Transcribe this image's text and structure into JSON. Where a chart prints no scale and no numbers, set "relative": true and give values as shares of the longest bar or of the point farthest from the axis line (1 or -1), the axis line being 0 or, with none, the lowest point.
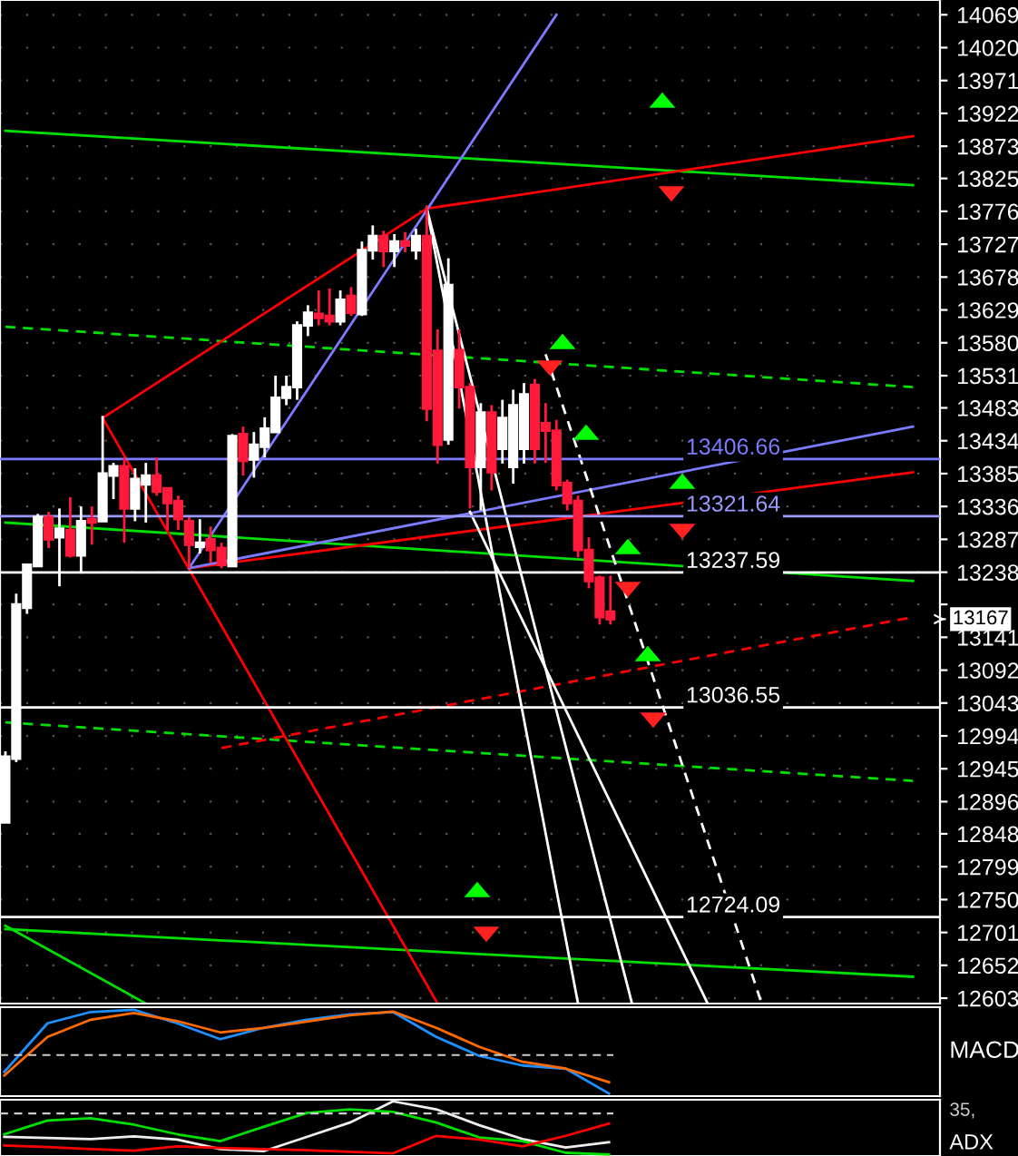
{
  "chart_data": [
    {
      "type": "candlestick",
      "categories": [
        null,
        null,
        null,
        null,
        null,
        null,
        null,
        null,
        null,
        null,
        null,
        null,
        null,
        null,
        null,
        null,
        null,
        null,
        null,
        null,
        null,
        null,
        null,
        null,
        null,
        null,
        null,
        null,
        null,
        null,
        null,
        null,
        null,
        null,
        null,
        null,
        null,
        null,
        null,
        null,
        null,
        null,
        null,
        null,
        null,
        null,
        null,
        null,
        null,
        null,
        null,
        null,
        null,
        null,
        null,
        null,
        null,
        null,
        null,
        null,
        null,
        null,
        null,
        null,
        null,
        null,
        null,
        null,
        null,
        null,
        null,
        null,
        null,
        null,
        null,
        null,
        null,
        null,
        null,
        null,
        null,
        null,
        null,
        null,
        null,
        null,
        null
      ],
      "ohlc": [
        [
          12865,
          12971,
          12865,
          12963
        ],
        [
          12960,
          13206,
          12955,
          13190
        ],
        [
          13185,
          13249,
          13176,
          13249
        ],
        [
          13247,
          13325,
          13247,
          13320
        ],
        [
          13320,
          13328,
          13274,
          13287
        ],
        [
          13290,
          13333,
          13217,
          13303
        ],
        [
          13301,
          13350,
          13260,
          13263
        ],
        [
          13263,
          13336,
          13236,
          13314
        ],
        [
          13317,
          13336,
          13279,
          13312
        ],
        [
          13314,
          13471,
          13314,
          13385
        ],
        [
          13382,
          13401,
          13347,
          13396
        ],
        [
          13396,
          13409,
          13282,
          13333
        ],
        [
          13333,
          13393,
          13314,
          13377
        ],
        [
          13369,
          13401,
          13312,
          13382
        ],
        [
          13382,
          13409,
          13352,
          13358
        ],
        [
          13363,
          13363,
          13301,
          13341
        ],
        [
          13344,
          13352,
          13301,
          13317
        ],
        [
          13314,
          13320,
          13244,
          13279
        ],
        [
          13276,
          13317,
          13266,
          13282
        ],
        [
          13287,
          13306,
          13252,
          13271
        ],
        [
          13274,
          13282,
          13244,
          13249
        ],
        [
          13247,
          13444,
          13247,
          13441
        ],
        [
          13444,
          13455,
          13382,
          13404
        ],
        [
          13406,
          13447,
          13379,
          13428
        ],
        [
          13425,
          13469,
          13409,
          13452
        ],
        [
          13447,
          13531,
          13447,
          13498
        ],
        [
          13498,
          13531,
          13487,
          13514
        ],
        [
          13514,
          13612,
          13495,
          13606
        ],
        [
          13606,
          13636,
          13590,
          13625
        ],
        [
          13623,
          13658,
          13606,
          13617
        ],
        [
          13620,
          13661,
          13606,
          13612
        ],
        [
          13612,
          13658,
          13606,
          13644
        ],
        [
          13650,
          13663,
          13620,
          13625
        ],
        [
          13623,
          13731,
          13620,
          13718
        ],
        [
          13718,
          13755,
          13704,
          13739
        ],
        [
          13739,
          13747,
          13693,
          13717
        ],
        [
          13717,
          13742,
          13693,
          13731
        ],
        [
          13731,
          13745,
          13715,
          13725
        ],
        [
          13718,
          13750,
          13704,
          13739
        ],
        [
          13739,
          13785,
          13463,
          13482
        ],
        [
          13568,
          13600,
          13400,
          13428
        ],
        [
          13436,
          13706,
          13428,
          13666
        ],
        [
          13569,
          13600,
          13482,
          13514
        ],
        [
          13514,
          13520,
          13333,
          13395
        ],
        [
          13395,
          13490,
          13330,
          13476
        ],
        [
          13476,
          13487,
          13360,
          13387
        ],
        [
          13422,
          13495,
          13400,
          13468
        ],
        [
          13395,
          13510,
          13370,
          13487
        ],
        [
          13422,
          13520,
          13400,
          13503
        ],
        [
          13517,
          13526,
          13400,
          13422
        ],
        [
          13460,
          13490,
          13401,
          13449
        ],
        [
          13449,
          13465,
          13360,
          13368
        ],
        [
          13371,
          13376,
          13330,
          13341
        ],
        [
          13344,
          13352,
          13260,
          13271
        ],
        [
          13271,
          13290,
          13214,
          13225
        ],
        [
          13230,
          13233,
          13160,
          13171
        ],
        [
          13179,
          13233,
          13160,
          13168
        ],
        null,
        null,
        null,
        null,
        null,
        null,
        null,
        null,
        null,
        null,
        null,
        null,
        null,
        null,
        null,
        null,
        null,
        null,
        null,
        null,
        null,
        null,
        null,
        null,
        null,
        null,
        null,
        null,
        null,
        null
      ],
      "series": [
        {
          "type": "line",
          "color": "#00e000",
          "line_style": "solid",
          "values": [
            13896,
            null,
            null,
            null,
            null,
            null,
            null,
            null,
            null,
            null,
            null,
            null,
            null,
            null,
            null,
            null,
            null,
            null,
            null,
            null,
            null,
            null,
            null,
            null,
            null,
            null,
            null,
            null,
            null,
            null,
            null,
            null,
            null,
            null,
            null,
            null,
            null,
            null,
            null,
            null,
            null,
            null,
            null,
            null,
            null,
            null,
            null,
            null,
            null,
            null,
            null,
            null,
            null,
            null,
            null,
            null,
            null,
            null,
            null,
            null,
            null,
            null,
            null,
            null,
            null,
            null,
            null,
            null,
            null,
            null,
            null,
            null,
            null,
            null,
            null,
            null,
            null,
            null,
            null,
            null,
            null,
            null,
            null,
            null,
            13815,
            null,
            null
          ]
        },
        {
          "type": "line",
          "color": "#00e000",
          "line_style": "solid",
          "values": [
            13312,
            null,
            null,
            null,
            null,
            null,
            null,
            null,
            null,
            null,
            null,
            null,
            null,
            null,
            null,
            null,
            null,
            null,
            null,
            null,
            null,
            null,
            null,
            null,
            null,
            null,
            null,
            null,
            null,
            null,
            null,
            null,
            null,
            null,
            null,
            null,
            null,
            null,
            null,
            null,
            null,
            null,
            null,
            null,
            null,
            null,
            null,
            null,
            null,
            null,
            null,
            null,
            null,
            null,
            null,
            null,
            null,
            null,
            null,
            null,
            null,
            null,
            null,
            null,
            null,
            null,
            null,
            null,
            null,
            null,
            null,
            null,
            null,
            null,
            null,
            null,
            null,
            null,
            null,
            null,
            null,
            null,
            null,
            null,
            13225,
            null,
            null
          ]
        },
        {
          "type": "line",
          "color": "#00e000",
          "line_style": "solid",
          "values": [
            12706,
            null,
            null,
            null,
            null,
            null,
            null,
            null,
            null,
            null,
            null,
            null,
            null,
            null,
            null,
            null,
            null,
            null,
            null,
            null,
            null,
            null,
            null,
            null,
            null,
            null,
            null,
            null,
            null,
            null,
            null,
            null,
            null,
            null,
            null,
            null,
            null,
            null,
            null,
            null,
            null,
            null,
            null,
            null,
            null,
            null,
            null,
            null,
            null,
            null,
            null,
            null,
            null,
            null,
            null,
            null,
            null,
            null,
            null,
            null,
            null,
            null,
            null,
            null,
            null,
            null,
            null,
            null,
            null,
            null,
            null,
            null,
            null,
            null,
            null,
            null,
            null,
            null,
            null,
            null,
            null,
            null,
            null,
            null,
            12635,
            null,
            null
          ]
        },
        {
          "type": "line",
          "color": "#00e000",
          "line_style": "solid",
          "values": [
            12711,
            null,
            null,
            null,
            null,
            null,
            null,
            null,
            null,
            null,
            null,
            null,
            null,
            12595,
            null,
            null,
            null,
            null,
            null,
            null,
            null,
            null,
            null,
            null,
            null,
            null,
            null,
            null,
            null,
            null,
            null,
            null,
            null,
            null,
            null,
            null,
            null,
            null,
            null,
            null,
            null,
            null,
            null,
            null,
            null,
            null,
            null,
            null,
            null,
            null,
            null,
            null,
            null,
            null,
            null,
            null,
            null,
            null,
            null,
            null,
            null,
            null,
            null,
            null,
            null,
            null,
            null,
            null,
            null,
            null,
            null,
            null,
            null,
            null,
            null,
            null,
            null,
            null,
            null,
            null,
            null,
            null,
            null,
            null,
            null,
            null,
            null
          ]
        },
        {
          "type": "line",
          "color": "#00e000",
          "line_style": "dashed",
          "values": [
            13604,
            null,
            null,
            null,
            null,
            null,
            null,
            null,
            null,
            null,
            null,
            null,
            null,
            null,
            null,
            null,
            null,
            null,
            null,
            null,
            null,
            null,
            null,
            null,
            null,
            null,
            null,
            null,
            null,
            null,
            null,
            null,
            null,
            null,
            null,
            null,
            null,
            null,
            null,
            null,
            null,
            null,
            null,
            null,
            null,
            null,
            null,
            null,
            null,
            null,
            null,
            null,
            null,
            null,
            null,
            null,
            null,
            null,
            null,
            null,
            null,
            null,
            null,
            null,
            null,
            null,
            null,
            null,
            null,
            null,
            null,
            null,
            null,
            null,
            null,
            null,
            null,
            null,
            null,
            null,
            null,
            null,
            null,
            null,
            13514,
            null,
            null
          ]
        },
        {
          "type": "line",
          "color": "#00e000",
          "line_style": "dashed",
          "values": [
            13014,
            null,
            null,
            null,
            null,
            null,
            null,
            null,
            null,
            null,
            null,
            null,
            null,
            null,
            null,
            null,
            null,
            null,
            null,
            null,
            null,
            null,
            null,
            null,
            null,
            null,
            null,
            null,
            null,
            null,
            null,
            null,
            null,
            null,
            null,
            null,
            null,
            null,
            null,
            null,
            null,
            null,
            null,
            null,
            null,
            null,
            null,
            null,
            null,
            null,
            null,
            null,
            null,
            null,
            null,
            null,
            null,
            null,
            null,
            null,
            null,
            null,
            null,
            null,
            null,
            null,
            null,
            null,
            null,
            null,
            null,
            null,
            null,
            null,
            null,
            null,
            null,
            null,
            null,
            null,
            null,
            null,
            null,
            null,
            12927,
            null,
            null
          ]
        },
        {
          "type": "line",
          "color": "#ff0000",
          "line_style": "solid",
          "values": [
            null,
            null,
            null,
            null,
            null,
            null,
            null,
            null,
            null,
            13468,
            null,
            null,
            null,
            null,
            null,
            null,
            null,
            null,
            null,
            null,
            null,
            null,
            null,
            null,
            null,
            null,
            null,
            null,
            null,
            null,
            null,
            null,
            null,
            null,
            null,
            null,
            null,
            null,
            null,
            13780,
            null,
            null,
            null,
            null,
            null,
            null,
            null,
            null,
            null,
            null,
            null,
            null,
            null,
            null,
            null,
            null,
            null,
            null,
            null,
            null,
            null,
            null,
            null,
            null,
            null,
            null,
            null,
            null,
            null,
            null,
            null,
            null,
            null,
            null,
            null,
            null,
            null,
            null,
            null,
            null,
            null,
            null,
            null,
            null,
            13888,
            null,
            null
          ]
        },
        {
          "type": "line",
          "color": "#ff0000",
          "line_style": "solid",
          "values": [
            null,
            null,
            null,
            null,
            null,
            null,
            null,
            null,
            null,
            13468,
            null,
            null,
            null,
            null,
            null,
            null,
            null,
            null,
            null,
            null,
            null,
            null,
            null,
            null,
            null,
            null,
            null,
            null,
            null,
            null,
            null,
            null,
            null,
            null,
            null,
            null,
            null,
            null,
            null,
            null,
            12595,
            null,
            null,
            null,
            null,
            null,
            null,
            null,
            null,
            null,
            null,
            null,
            null,
            null,
            null,
            null,
            null,
            null,
            null,
            null,
            null,
            null,
            null,
            null,
            null,
            null,
            null,
            null,
            null,
            null,
            null,
            null,
            null,
            null,
            null,
            null,
            null,
            null,
            null,
            null,
            null,
            null,
            null,
            null,
            null,
            null,
            null
          ]
        },
        {
          "type": "line",
          "color": "#ff0000",
          "line_style": "solid",
          "values": [
            null,
            null,
            null,
            null,
            null,
            null,
            null,
            null,
            null,
            null,
            null,
            null,
            null,
            null,
            null,
            null,
            null,
            13244,
            null,
            null,
            null,
            null,
            null,
            null,
            null,
            null,
            null,
            null,
            null,
            null,
            null,
            null,
            null,
            null,
            null,
            null,
            null,
            null,
            null,
            null,
            null,
            null,
            null,
            null,
            null,
            null,
            null,
            null,
            null,
            null,
            null,
            null,
            null,
            null,
            null,
            null,
            null,
            null,
            null,
            null,
            null,
            null,
            null,
            null,
            null,
            null,
            null,
            null,
            null,
            null,
            null,
            null,
            null,
            null,
            null,
            null,
            null,
            null,
            null,
            null,
            null,
            null,
            null,
            null,
            13387,
            null,
            null
          ]
        },
        {
          "type": "line",
          "color": "#ff0000",
          "line_style": "dashed",
          "values": [
            null,
            null,
            null,
            null,
            null,
            null,
            null,
            null,
            null,
            null,
            null,
            null,
            null,
            null,
            null,
            null,
            null,
            null,
            null,
            null,
            12976,
            null,
            null,
            null,
            null,
            null,
            null,
            null,
            null,
            null,
            null,
            null,
            null,
            null,
            null,
            null,
            null,
            null,
            null,
            null,
            null,
            null,
            null,
            null,
            null,
            null,
            null,
            null,
            null,
            null,
            null,
            null,
            null,
            null,
            null,
            null,
            null,
            null,
            null,
            null,
            null,
            null,
            null,
            null,
            null,
            null,
            null,
            null,
            null,
            null,
            null,
            null,
            null,
            null,
            null,
            null,
            null,
            null,
            null,
            null,
            null,
            null,
            null,
            null,
            13171,
            null,
            null
          ]
        },
        {
          "type": "line",
          "color": "#7b7bff",
          "line_style": "solid",
          "values": [
            null,
            null,
            null,
            null,
            null,
            null,
            null,
            null,
            null,
            null,
            null,
            null,
            null,
            null,
            null,
            null,
            null,
            13244,
            null,
            null,
            null,
            null,
            null,
            null,
            null,
            null,
            null,
            null,
            null,
            null,
            null,
            null,
            null,
            null,
            null,
            null,
            null,
            null,
            null,
            null,
            null,
            null,
            null,
            null,
            null,
            null,
            null,
            null,
            null,
            null,
            null,
            14069,
            null,
            null,
            null,
            null,
            null,
            null,
            null,
            null,
            null,
            null,
            null,
            null,
            null,
            null,
            null,
            null,
            null,
            null,
            null,
            null,
            null,
            null,
            null,
            null,
            null,
            null,
            null,
            null,
            null,
            null,
            null,
            null,
            null,
            null,
            null
          ]
        },
        {
          "type": "line",
          "color": "#7b7bff",
          "line_style": "solid",
          "values": [
            null,
            null,
            null,
            null,
            null,
            null,
            null,
            null,
            null,
            null,
            null,
            null,
            null,
            null,
            null,
            null,
            null,
            13244,
            null,
            null,
            null,
            null,
            null,
            null,
            null,
            null,
            null,
            null,
            null,
            null,
            null,
            null,
            null,
            null,
            null,
            null,
            null,
            null,
            null,
            null,
            null,
            null,
            null,
            null,
            null,
            null,
            null,
            null,
            null,
            null,
            null,
            null,
            null,
            null,
            null,
            null,
            null,
            null,
            null,
            null,
            null,
            null,
            null,
            null,
            null,
            null,
            null,
            null,
            null,
            null,
            null,
            null,
            null,
            null,
            null,
            null,
            null,
            null,
            null,
            null,
            null,
            null,
            null,
            null,
            13455,
            null,
            null
          ]
        },
        {
          "type": "line",
          "color": "#ffffff",
          "line_style": "solid",
          "values": [
            null,
            null,
            null,
            null,
            null,
            null,
            null,
            null,
            null,
            null,
            null,
            null,
            null,
            null,
            null,
            null,
            null,
            null,
            null,
            null,
            null,
            null,
            null,
            null,
            null,
            null,
            null,
            null,
            null,
            null,
            null,
            null,
            null,
            null,
            null,
            null,
            null,
            null,
            null,
            13780,
            null,
            null,
            null,
            null,
            null,
            null,
            null,
            null,
            null,
            null,
            null,
            null,
            null,
            12595,
            null,
            null,
            null,
            null,
            null,
            null,
            null,
            null,
            null,
            null,
            null,
            null,
            null,
            null,
            null,
            null,
            null,
            null,
            null,
            null,
            null,
            null,
            null,
            null,
            null,
            null,
            null,
            null,
            null,
            null,
            null,
            null,
            null
          ]
        },
        {
          "type": "line",
          "color": "#ffffff",
          "line_style": "solid",
          "values": [
            null,
            null,
            null,
            null,
            null,
            null,
            null,
            null,
            null,
            null,
            null,
            null,
            null,
            null,
            null,
            null,
            null,
            null,
            null,
            null,
            null,
            null,
            null,
            null,
            null,
            null,
            null,
            null,
            null,
            null,
            null,
            null,
            null,
            null,
            null,
            null,
            null,
            null,
            null,
            13780,
            null,
            null,
            null,
            null,
            null,
            null,
            null,
            null,
            null,
            null,
            null,
            null,
            null,
            null,
            null,
            null,
            null,
            null,
            12595,
            null,
            null,
            null,
            null,
            null,
            null,
            null,
            null,
            null,
            null,
            null,
            null,
            null,
            null,
            null,
            null,
            null,
            null,
            null,
            null,
            null,
            null,
            null,
            null,
            null,
            null,
            null,
            null
          ]
        },
        {
          "type": "line",
          "color": "#ffffff",
          "line_style": "solid",
          "values": [
            null,
            null,
            null,
            null,
            null,
            null,
            null,
            null,
            null,
            null,
            null,
            null,
            null,
            null,
            null,
            null,
            null,
            null,
            null,
            null,
            null,
            null,
            null,
            null,
            null,
            null,
            null,
            null,
            null,
            null,
            null,
            null,
            null,
            null,
            null,
            null,
            null,
            null,
            null,
            null,
            null,
            null,
            null,
            13328,
            null,
            null,
            null,
            null,
            null,
            null,
            null,
            null,
            null,
            null,
            null,
            null,
            null,
            null,
            null,
            null,
            null,
            null,
            null,
            null,
            null,
            12595,
            null,
            null,
            null,
            null,
            null,
            null,
            null,
            null,
            null,
            null,
            null,
            null,
            null,
            null,
            null,
            null,
            null,
            null,
            null,
            null,
            null
          ]
        },
        {
          "type": "line",
          "color": "#ffffff",
          "line_style": "dashed",
          "values": [
            null,
            null,
            null,
            null,
            null,
            null,
            null,
            null,
            null,
            null,
            null,
            null,
            null,
            null,
            null,
            null,
            null,
            null,
            null,
            null,
            null,
            null,
            null,
            null,
            null,
            null,
            null,
            null,
            null,
            null,
            null,
            null,
            null,
            null,
            null,
            null,
            null,
            null,
            null,
            null,
            null,
            null,
            null,
            null,
            null,
            null,
            null,
            null,
            null,
            null,
            13563,
            null,
            null,
            null,
            null,
            null,
            null,
            null,
            null,
            null,
            null,
            null,
            null,
            null,
            null,
            null,
            null,
            null,
            null,
            null,
            12595,
            null,
            null,
            null,
            null,
            null,
            null,
            null,
            null,
            null,
            null,
            null,
            null,
            null,
            null,
            null,
            null
          ]
        }
      ],
      "ref_lines": [
        {
          "axis": "y",
          "value": 13406.66,
          "label": "13406.66",
          "color": "#7b7bff"
        },
        {
          "axis": "y",
          "value": 13321.64,
          "label": "13321.64",
          "color": "#9999ff"
        },
        {
          "axis": "y",
          "value": 13237.59,
          "label": "13237.59",
          "color": "#ffffff"
        },
        {
          "axis": "y",
          "value": 13036.55,
          "label": "13036.55",
          "color": "#ffffff"
        },
        {
          "axis": "y",
          "value": 12724.09,
          "label": "12724.09",
          "color": "#ffffff"
        }
      ],
      "annotations": [
        "13167"
      ],
      "ylim": [
        12595,
        14091
      ],
      "yticks": [
        14069,
        14020,
        13971,
        13922,
        13873,
        13825,
        13776,
        13727,
        13678,
        13629,
        13580,
        13531,
        13483,
        13434,
        13385,
        13336,
        13287,
        13238,
        {
          "value": 13190,
          "label": null
        },
        13141,
        13092,
        13043,
        12994,
        12945,
        12896,
        12848,
        12799,
        12750,
        12701,
        12652,
        12603
      ],
      "tick_labels": "y",
      "grid": true
    },
    {
      "type": "line",
      "relative": true,
      "ylabel": "MACD",
      "ref_lines": [
        {
          "axis": "y",
          "value": 0,
          "color": "#cccccc",
          "line_style": "dashed"
        }
      ],
      "categories": [
        null,
        null,
        null,
        null,
        null,
        null,
        null,
        null,
        null,
        null,
        null,
        null,
        null,
        null,
        null
      ],
      "series": [
        {
          "color": "#1e90ff",
          "values": [
            -0.37,
            0.7,
            0.95,
            1,
            0.7,
            0.35,
            0.6,
            0.78,
            0.9,
            0.95,
            0.4,
            -0.02,
            -0.23,
            -0.3,
            -0.85
          ]
        },
        {
          "color": "#ff6a00",
          "values": [
            -0.45,
            0.4,
            0.78,
            0.93,
            0.75,
            0.5,
            0.6,
            0.74,
            0.88,
            0.96,
            0.6,
            0.18,
            -0.15,
            -0.3,
            -0.6
          ]
        }
      ]
    },
    {
      "type": "line",
      "relative": true,
      "ylabel": "ADX",
      "ref_lines": [
        {
          "axis": "y",
          "value": 0.77,
          "color": "#cccccc",
          "line_style": "dashed"
        }
      ],
      "annotations": [
        "35,"
      ],
      "categories": [
        null,
        null,
        null,
        null,
        null,
        null,
        null,
        null,
        null,
        null,
        null,
        null,
        null,
        null,
        null
      ],
      "series": [
        {
          "color": "#eeeeee",
          "values": [
            0.33,
            0.31,
            0.29,
            0.34,
            0.28,
            0.1,
            0.06,
            0.33,
            0.6,
            1.0,
            0.85,
            0.55,
            0.29,
            0.13,
            0.23
          ]
        },
        {
          "color": "#00e000",
          "values": [
            0.38,
            0.64,
            0.68,
            0.56,
            0.38,
            0.25,
            0.52,
            0.78,
            0.85,
            0.8,
            0.6,
            0.32,
            0.25,
            0.03,
            0
          ]
        },
        {
          "color": "#ff0000",
          "values": [
            0.17,
            0.14,
            0.1,
            0.07,
            0.15,
            0.12,
            0.1,
            0.08,
            0.05,
            0.02,
            0.35,
            0.28,
            0.15,
            0.35,
            0.58
          ]
        }
      ]
    }
  ]
}
